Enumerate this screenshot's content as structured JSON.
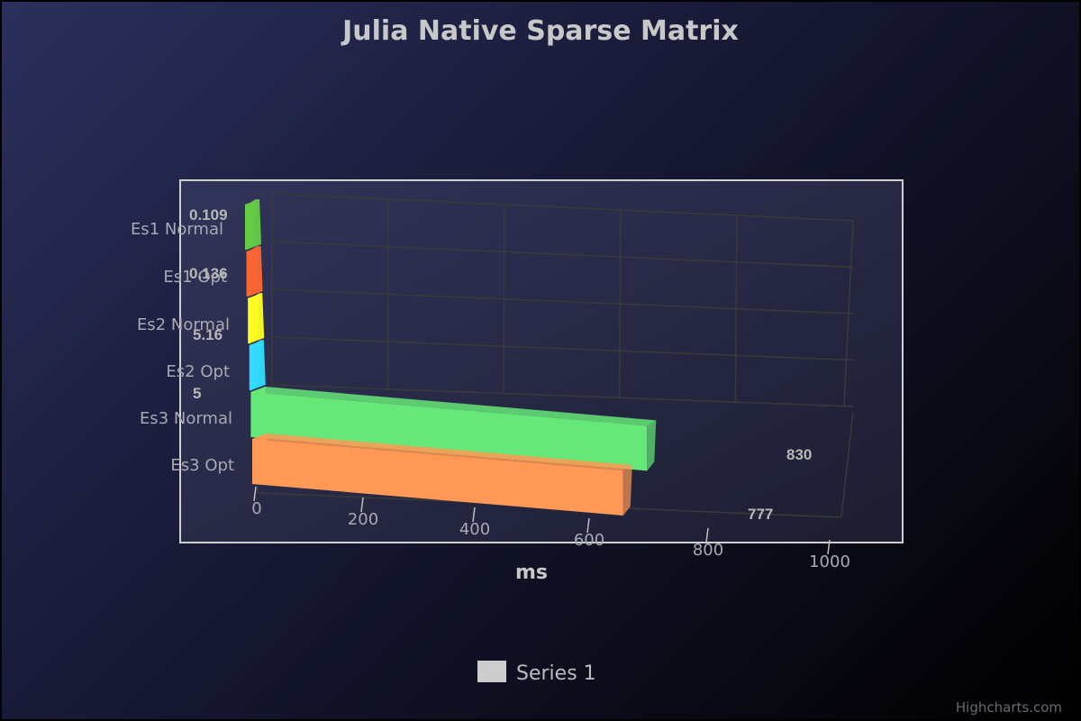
{
  "chart_data": {
    "type": "bar",
    "orientation": "horizontal-3d",
    "title": "Julia Native Sparse Matrix",
    "xlabel": "ms",
    "ylabel": "",
    "categories": [
      "Es1 Normal",
      "Es1 Opt",
      "Es2 Normal",
      "Es2 Opt",
      "Es3 Normal",
      "Es3 Opt"
    ],
    "series": [
      {
        "name": "Series 1",
        "values": [
          0.109,
          0.136,
          5.16,
          5,
          830,
          777
        ]
      }
    ],
    "data_labels": [
      "0.109",
      "0.136",
      "5.16",
      "5",
      "830",
      "777"
    ],
    "colors": [
      "#66cc44",
      "#ff6633",
      "#ffff22",
      "#33ddff",
      "#66e878",
      "#ff9955"
    ],
    "xlim": [
      0,
      1000
    ],
    "x_ticks": [
      "0",
      "200",
      "400",
      "600",
      "800",
      "1000"
    ],
    "grid": true,
    "legend": {
      "placement": "bottom-center",
      "entries": [
        "Series 1"
      ],
      "swatch_color": "#cccccc"
    }
  },
  "credits": "Highcharts.com",
  "theme": {
    "title_color": "#c8c8c8",
    "label_color": "#a9a9b2",
    "frame_color": "#d0d0d0"
  }
}
